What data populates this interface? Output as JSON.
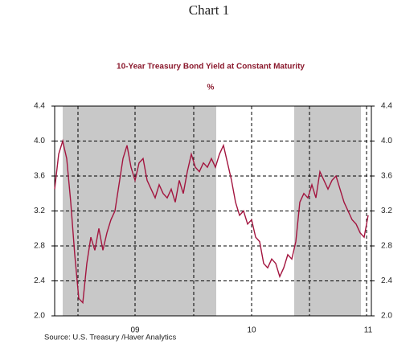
{
  "chart_data": {
    "type": "line",
    "title": "Chart 1",
    "subtitle": "10-Year Treasury Bond Yield at Constant Maturity",
    "unit_label": "%",
    "source": "Source:  U.S. Treasury /Haver Analytics",
    "categories": [
      null,
      null,
      null,
      null,
      null,
      null,
      null,
      null,
      null,
      null,
      null,
      null,
      null,
      null,
      null,
      null,
      null,
      null,
      null,
      null,
      "09",
      null,
      null,
      null,
      null,
      null,
      null,
      null,
      null,
      null,
      null,
      null,
      null,
      null,
      null,
      null,
      null,
      null,
      null,
      null,
      null,
      null,
      null,
      null,
      null,
      null,
      null,
      null,
      null,
      "10",
      null,
      null,
      null,
      null,
      null,
      null,
      null,
      null,
      null,
      null,
      null,
      null,
      null,
      null,
      null,
      null,
      null,
      null,
      null,
      null,
      null,
      null,
      null,
      null,
      null,
      null,
      null,
      null,
      "11"
    ],
    "series": [
      {
        "name": "10-Year Treasury Bond Yield",
        "color": "#a3153f",
        "values": [
          3.45,
          3.85,
          4.0,
          3.8,
          3.3,
          2.7,
          2.2,
          2.15,
          2.6,
          2.9,
          2.75,
          3.0,
          2.75,
          2.95,
          3.1,
          3.2,
          3.5,
          3.8,
          3.95,
          3.7,
          3.55,
          3.75,
          3.8,
          3.55,
          3.45,
          3.35,
          3.5,
          3.4,
          3.35,
          3.45,
          3.3,
          3.55,
          3.4,
          3.65,
          3.85,
          3.7,
          3.65,
          3.75,
          3.7,
          3.8,
          3.7,
          3.85,
          3.95,
          3.75,
          3.55,
          3.3,
          3.15,
          3.2,
          3.05,
          3.1,
          2.9,
          2.85,
          2.6,
          2.55,
          2.65,
          2.6,
          2.45,
          2.55,
          2.7,
          2.65,
          2.85,
          3.3,
          3.4,
          3.35,
          3.5,
          3.35,
          3.65,
          3.55,
          3.45,
          3.55,
          3.6,
          3.45,
          3.3,
          3.2,
          3.1,
          3.05,
          2.95,
          2.9,
          3.15
        ]
      }
    ],
    "ylim": [
      2.0,
      4.4
    ],
    "yticks": [
      {
        "value": 2.0,
        "label": "2.0"
      },
      2.4,
      2.8,
      3.2,
      3.6,
      {
        "value": 4.0,
        "label": "4.0"
      },
      4.4
    ],
    "grid": true
  }
}
